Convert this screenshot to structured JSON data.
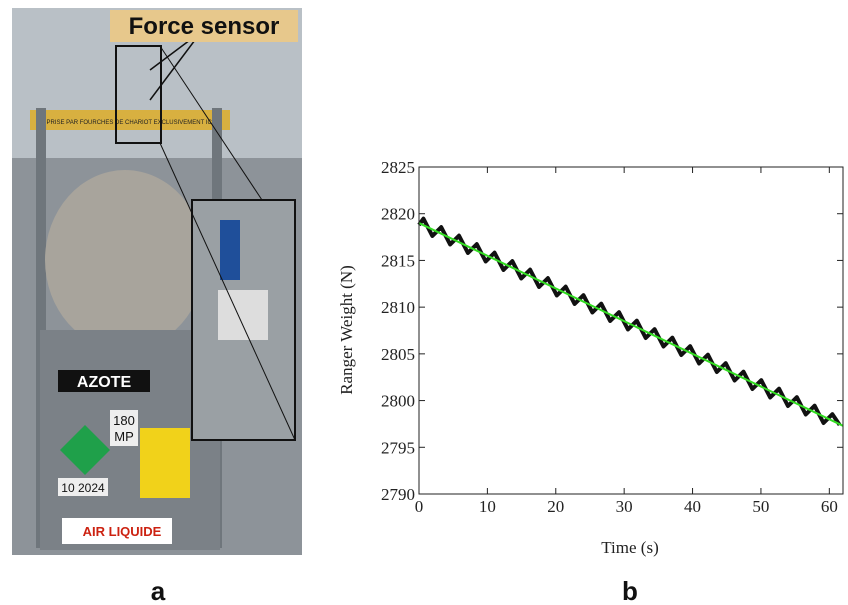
{
  "chart_data": {
    "type": "line",
    "xlabel": "Time (s)",
    "ylabel": "Ranger Weight (N)",
    "xlim": [
      0,
      62
    ],
    "ylim": [
      2790,
      2825
    ],
    "xticks": [
      0,
      10,
      20,
      30,
      40,
      50,
      60
    ],
    "yticks": [
      2790,
      2795,
      2800,
      2805,
      2810,
      2815,
      2820,
      2825
    ],
    "series": [
      {
        "color": "#111111",
        "x": [
          0,
          0.65,
          1.95,
          3.25,
          4.55,
          5.85,
          7.15,
          8.45,
          9.75,
          11.05,
          12.35,
          13.65,
          14.95,
          16.25,
          17.55,
          18.85,
          20.15,
          21.45,
          22.75,
          24.05,
          25.35,
          26.65,
          27.95,
          29.25,
          30.55,
          31.85,
          33.15,
          34.45,
          35.75,
          37.05,
          38.35,
          39.65,
          40.95,
          42.25,
          43.55,
          44.85,
          46.15,
          47.45,
          48.75,
          50.05,
          51.35,
          52.65,
          53.95,
          55.25,
          56.55,
          57.85,
          59.15,
          60.45,
          61.5
        ],
        "values": [
          2818.8,
          2819.47,
          2817.62,
          2818.56,
          2816.71,
          2817.65,
          2815.8,
          2816.74,
          2814.89,
          2815.83,
          2813.98,
          2814.92,
          2813.07,
          2814.01,
          2812.16,
          2813.1,
          2811.25,
          2812.19,
          2810.34,
          2811.28,
          2809.43,
          2810.37,
          2808.52,
          2809.46,
          2807.61,
          2808.55,
          2806.7,
          2807.64,
          2805.79,
          2806.73,
          2804.88,
          2805.82,
          2803.97,
          2804.91,
          2803.06,
          2804.0,
          2802.15,
          2803.09,
          2801.24,
          2802.18,
          2800.33,
          2801.27,
          2799.42,
          2800.36,
          2798.51,
          2799.45,
          2797.6,
          2798.54,
          2797.4
        ]
      },
      {
        "color": "#33dd22",
        "x": [
          0,
          62
        ],
        "values": [
          2819.0,
          2797.3
        ]
      }
    ]
  },
  "figure": {
    "annotation": "Force sensor",
    "panel_a": "a",
    "panel_b": "b",
    "photo_texts": {
      "banner": "PRISE PAR FOURCHES DE CHARIOT EXCLUSIVEMENT ICI",
      "gas": "AZOTE",
      "pressure": "180",
      "unit": "MP",
      "date": "10 2024",
      "brand": "AIR LIQUIDE"
    }
  }
}
